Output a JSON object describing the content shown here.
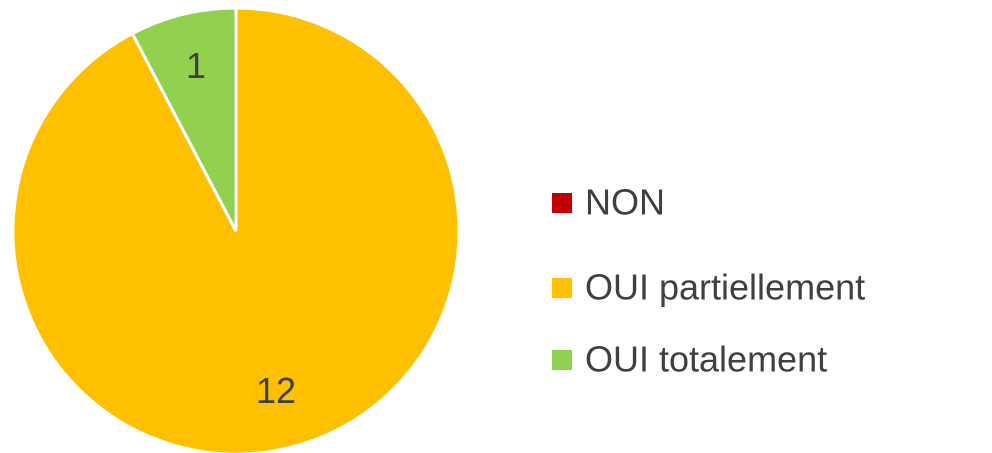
{
  "chart_data": {
    "type": "pie",
    "categories": [
      "NON",
      "OUI partiellement",
      "OUI totalement"
    ],
    "values": [
      0,
      12,
      1
    ],
    "colors": [
      "#c00000",
      "#ffc000",
      "#92d050"
    ],
    "legend": "right"
  }
}
